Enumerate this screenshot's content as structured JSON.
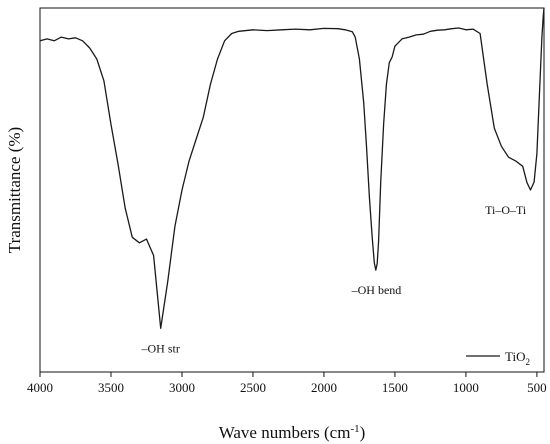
{
  "chart_data": {
    "type": "line",
    "title": "",
    "xlabel": "Wave numbers (cm",
    "xlabel_sup": "-1",
    "xlabel_tail": ")",
    "ylabel": "Transmittance (%)",
    "xlim": [
      4000,
      450
    ],
    "x_reversed": true,
    "ylim": [
      0,
      100
    ],
    "y_ticks_labeled": false,
    "x_ticks": [
      4000,
      3500,
      3000,
      2500,
      2000,
      1500,
      1000,
      500
    ],
    "x_tick_labels": [
      "4000",
      "3500",
      "3000",
      "2500",
      "2000",
      "1500",
      "1000",
      "500"
    ],
    "grid": false,
    "legend_position": "bottom-right",
    "series": [
      {
        "name": "TiO",
        "name_sub": "2",
        "color": "#1a1a1a",
        "x": [
          4000,
          3950,
          3900,
          3850,
          3800,
          3750,
          3700,
          3650,
          3600,
          3550,
          3500,
          3450,
          3400,
          3350,
          3300,
          3250,
          3200,
          3150,
          3100,
          3050,
          3000,
          2950,
          2900,
          2850,
          2800,
          2750,
          2700,
          2650,
          2600,
          2500,
          2400,
          2300,
          2200,
          2100,
          2000,
          1900,
          1850,
          1800,
          1780,
          1750,
          1720,
          1700,
          1680,
          1660,
          1645,
          1635,
          1625,
          1615,
          1600,
          1580,
          1560,
          1540,
          1520,
          1500,
          1450,
          1400,
          1350,
          1300,
          1250,
          1200,
          1150,
          1100,
          1050,
          1000,
          950,
          900,
          850,
          800,
          750,
          700,
          650,
          600,
          570,
          545,
          520,
          500,
          480,
          465,
          455,
          450
        ],
        "y": [
          91,
          91.5,
          91,
          92,
          91.5,
          91.8,
          91,
          89,
          86,
          80,
          68,
          57,
          45,
          37,
          35.5,
          36.5,
          32,
          12,
          25,
          40,
          50,
          58,
          64,
          70,
          79,
          86,
          91,
          93,
          93.6,
          94,
          93.8,
          94,
          94.2,
          94,
          94.4,
          94.3,
          94,
          93.5,
          92,
          86,
          74,
          62,
          48,
          37,
          30,
          28,
          29.8,
          36,
          52,
          68,
          79,
          85,
          86.5,
          89.5,
          91.5,
          92,
          92.6,
          92.8,
          93.6,
          93.9,
          94,
          94.3,
          94.5,
          94,
          94.2,
          93,
          79,
          67,
          62,
          59,
          58,
          56.5,
          52,
          50,
          52.2,
          60,
          78,
          92,
          98,
          100
        ]
      }
    ],
    "annotations": [
      {
        "text": "–OH str",
        "x": 3150,
        "y": 12,
        "label_x": 3150,
        "label_y": 6.5
      },
      {
        "text": "–OH bend",
        "x": 1630,
        "y": 28,
        "label_x": 1630,
        "label_y": 22.5
      },
      {
        "text": "Ti–O–Ti",
        "x": 540,
        "y": 50,
        "label_x": 720,
        "label_y": 44.5
      }
    ]
  }
}
